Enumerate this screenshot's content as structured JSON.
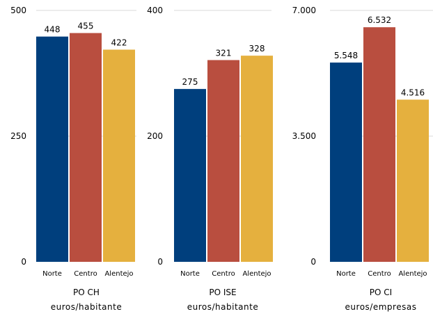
{
  "colors": {
    "Norte": "#003f7d",
    "Centro": "#b94e3f",
    "Alentejo": "#e5b03e",
    "gridline": "#d9d9d9"
  },
  "chart_data": [
    {
      "type": "bar",
      "title": "PO CH",
      "ylabel": "euros/habitante",
      "categories": [
        "Norte",
        "Centro",
        "Alentejo"
      ],
      "values": [
        448,
        455,
        422
      ],
      "value_labels": [
        "448",
        "455",
        "422"
      ],
      "ylim": [
        0,
        500
      ],
      "yticks": [
        0,
        250,
        500
      ],
      "ytick_labels": [
        "0",
        "250",
        "500"
      ],
      "grid": true
    },
    {
      "type": "bar",
      "title": "PO ISE",
      "ylabel": "euros/habitante",
      "categories": [
        "Norte",
        "Centro",
        "Alentejo"
      ],
      "values": [
        275,
        321,
        328
      ],
      "value_labels": [
        "275",
        "321",
        "328"
      ],
      "ylim": [
        0,
        400
      ],
      "yticks": [
        0,
        200,
        400
      ],
      "ytick_labels": [
        "0",
        "200",
        "400"
      ],
      "grid": true
    },
    {
      "type": "bar",
      "title": "PO CI",
      "ylabel": "euros/empresas",
      "categories": [
        "Norte",
        "Centro",
        "Alentejo"
      ],
      "values": [
        5548,
        6532,
        4516
      ],
      "value_labels": [
        "5.548",
        "6.532",
        "4.516"
      ],
      "ylim": [
        0,
        7000
      ],
      "yticks": [
        0,
        3500,
        7000
      ],
      "ytick_labels": [
        "0",
        "3.500",
        "7.000"
      ],
      "grid": true
    }
  ]
}
